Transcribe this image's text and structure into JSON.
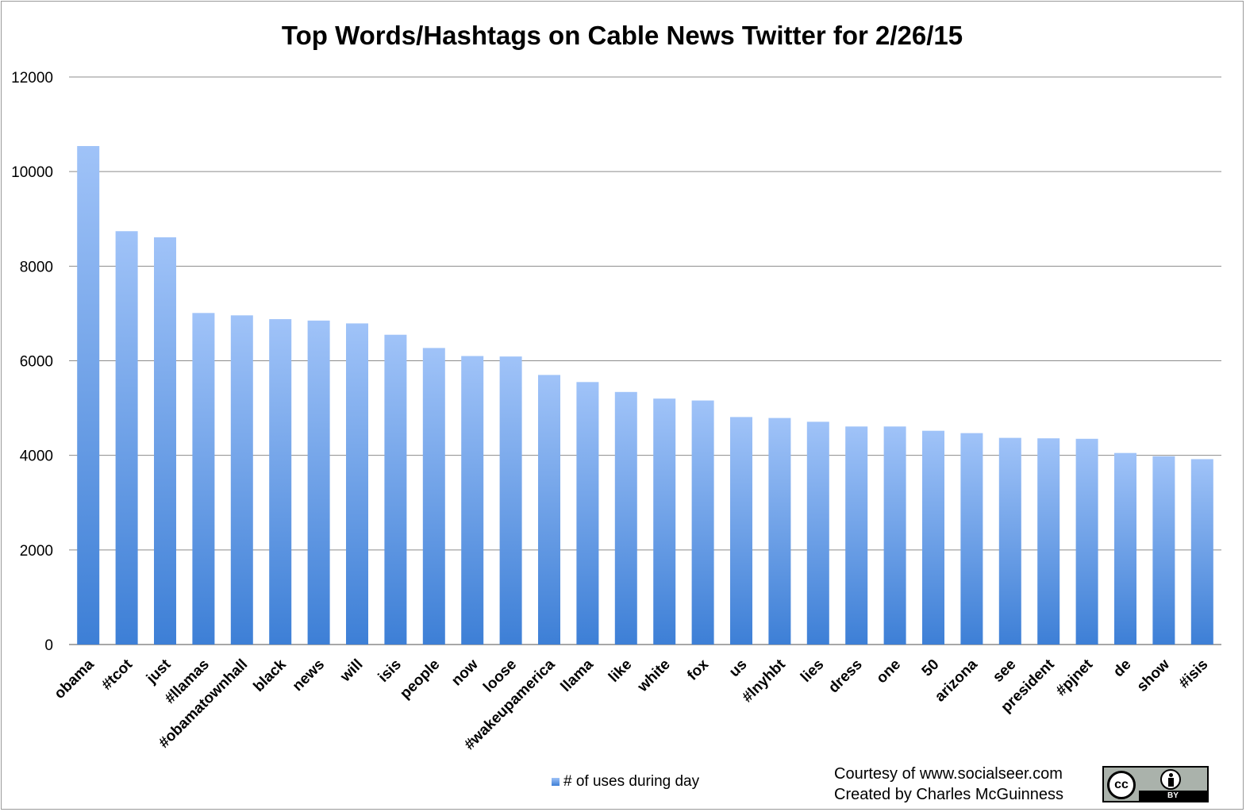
{
  "chart_data": {
    "type": "bar",
    "title": "Top Words/Hashtags on Cable News Twitter for 2/26/15",
    "xlabel": "",
    "ylabel": "",
    "ylim": [
      0,
      12000
    ],
    "yticks": [
      "0",
      "2000",
      "4000",
      "6000",
      "8000",
      "10000",
      "12000"
    ],
    "grid": true,
    "legend_position": "bottom-center",
    "categories": [
      "obama",
      "#tcot",
      "just",
      "#llamas",
      "#obamatownhall",
      "black",
      "news",
      "will",
      "isis",
      "people",
      "now",
      "loose",
      "#wakeupamerica",
      "llama",
      "like",
      "white",
      "fox",
      "us",
      "#lnyhbt",
      "lies",
      "dress",
      "one",
      "50",
      "arizona",
      "see",
      "president",
      "#pjnet",
      "de",
      "show",
      "#isis"
    ],
    "series": [
      {
        "name": "# of uses during day",
        "values": [
          10540,
          8740,
          8610,
          7010,
          6960,
          6880,
          6850,
          6790,
          6550,
          6270,
          6100,
          6090,
          5700,
          5550,
          5340,
          5200,
          5160,
          4810,
          4790,
          4710,
          4610,
          4610,
          4520,
          4470,
          4370,
          4360,
          4350,
          4050,
          3980,
          3920
        ]
      }
    ],
    "colors": {
      "bar_top": "#a0c3f8",
      "bar_bottom": "#3d7fd6",
      "grid": "#8c8c8c",
      "axis": "#8c8c8c"
    }
  },
  "footer": {
    "courtesy": "Courtesy of www.socialseer.com",
    "created_by": "Created by Charles McGuinness",
    "license_icon": "creative-commons-by-icon",
    "license_cc": "cc",
    "license_by": "BY"
  }
}
